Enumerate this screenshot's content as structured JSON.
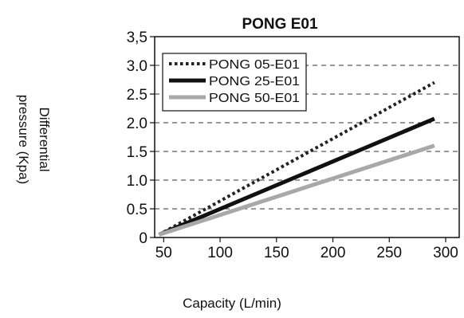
{
  "chart_data": {
    "type": "line",
    "title": "PONG E01",
    "xlabel": "Capacity (L/min)",
    "ylabel_lines": [
      "Differential",
      "pressure (Kpa)"
    ],
    "xlim": [
      42,
      312
    ],
    "ylim": [
      0,
      3.5
    ],
    "x_ticks": [
      50,
      100,
      150,
      200,
      250,
      300
    ],
    "x_tick_labels": [
      "50",
      "100",
      "150",
      "200",
      "250",
      "300"
    ],
    "y_ticks": [
      0,
      0.5,
      1.0,
      1.5,
      2.0,
      2.5,
      3.0,
      3.5
    ],
    "y_tick_labels": [
      "0",
      "0.5",
      "1.0",
      "1.5",
      "2.0",
      "2.5",
      "3.0",
      "3,5"
    ],
    "grid": "horizontal dashed",
    "legend_position": "top-left",
    "series": [
      {
        "name": "PONG 05-E01",
        "x": [
          46,
          290
        ],
        "y": [
          0.05,
          2.7
        ],
        "color": "#222222",
        "style": "dotted"
      },
      {
        "name": "PONG 25-E01",
        "x": [
          46,
          290
        ],
        "y": [
          0.05,
          2.07
        ],
        "color": "#111111",
        "style": "solid-thick"
      },
      {
        "name": "PONG 50-E01",
        "x": [
          46,
          290
        ],
        "y": [
          0.05,
          1.6
        ],
        "color": "#a8a8a8",
        "style": "solid-thick"
      }
    ]
  }
}
